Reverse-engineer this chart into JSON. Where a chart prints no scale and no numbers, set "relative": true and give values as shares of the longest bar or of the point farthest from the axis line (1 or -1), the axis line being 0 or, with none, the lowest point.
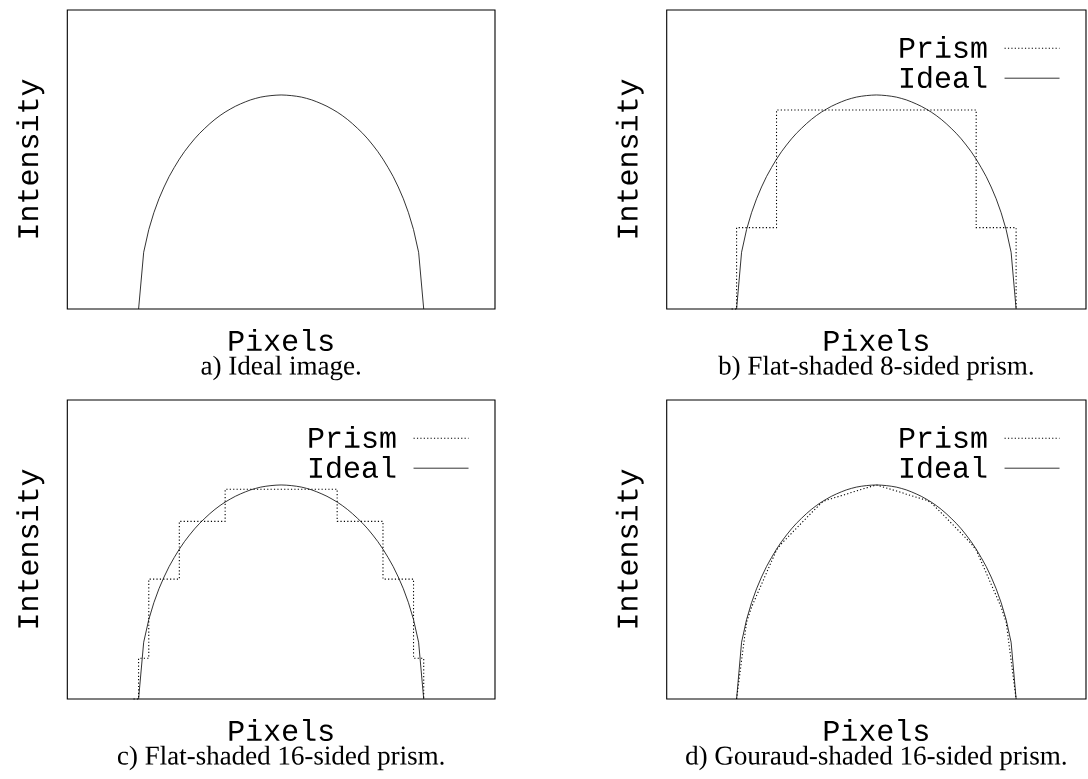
{
  "chart_data": [
    {
      "type": "line",
      "relative": true,
      "xlabel": "Pixels",
      "ylabel": "Intensity",
      "annotations": [
        "a) Ideal image."
      ],
      "categories": [
        null,
        null,
        null,
        null,
        null,
        null,
        null,
        null,
        null,
        null,
        null,
        null,
        null,
        null,
        null,
        null,
        null,
        null,
        null,
        null,
        null,
        null,
        null,
        null,
        null,
        null,
        null,
        null,
        null,
        null,
        null,
        null,
        null,
        null,
        null,
        null,
        null,
        null,
        null,
        null,
        null,
        null,
        null,
        null,
        null,
        null,
        null,
        null,
        null,
        null,
        null,
        null,
        null,
        null,
        null,
        null,
        null,
        null,
        null,
        null,
        null,
        null,
        null,
        null,
        null,
        null,
        null,
        null,
        null,
        null,
        null,
        null,
        null,
        null,
        null,
        null,
        null,
        null,
        null,
        null,
        null,
        null,
        null,
        null,
        null
      ],
      "series": [
        {
          "type": "line",
          "color": "#000000",
          "line_style": "solid",
          "values": [
            null,
            null,
            null,
            null,
            null,
            null,
            null,
            null,
            null,
            null,
            null,
            null,
            null,
            null,
            0,
            0.265,
            0.371,
            0.45,
            0.515,
            0.57,
            0.619,
            0.661,
            0.7,
            0.735,
            0.766,
            0.795,
            0.821,
            0.844,
            0.866,
            0.886,
            0.904,
            0.92,
            0.934,
            0.947,
            0.958,
            0.968,
            0.977,
            0.984,
            0.99,
            0.994,
            0.997,
            0.999,
            1,
            0.999,
            0.997,
            0.994,
            0.99,
            0.984,
            0.977,
            0.968,
            0.958,
            0.947,
            0.934,
            0.92,
            0.904,
            0.886,
            0.866,
            0.844,
            0.821,
            0.795,
            0.766,
            0.735,
            0.7,
            0.661,
            0.619,
            0.57,
            0.515,
            0.45,
            0.371,
            0.265,
            0,
            null,
            null,
            null,
            null,
            null,
            null,
            null,
            null,
            null,
            null,
            null,
            null,
            null,
            null
          ]
        }
      ]
    },
    {
      "type": "line",
      "relative": true,
      "xlabel": "Pixels",
      "ylabel": "Intensity",
      "annotations": [
        "b) Flat-shaded 8-sided prism."
      ],
      "legend": "top right",
      "categories": [
        null,
        null,
        null,
        null,
        null,
        null,
        null,
        null,
        null,
        null,
        null,
        null,
        null,
        null,
        null,
        null,
        null,
        null,
        null,
        null,
        null,
        null,
        null,
        null,
        null,
        null,
        null,
        null,
        null,
        null,
        null,
        null,
        null,
        null,
        null,
        null,
        null,
        null,
        null,
        null,
        null,
        null,
        null,
        null,
        null,
        null,
        null,
        null,
        null,
        null,
        null,
        null,
        null,
        null,
        null,
        null,
        null,
        null,
        null,
        null,
        null,
        null,
        null,
        null,
        null,
        null,
        null,
        null,
        null,
        null,
        null,
        null,
        null,
        null,
        null,
        null,
        null,
        null,
        null,
        null,
        null,
        null,
        null,
        null,
        null
      ],
      "series": [
        {
          "name": "Prism",
          "type": "step",
          "color": "#000000",
          "line_style": "dotted",
          "values": [
            null,
            null,
            null,
            null,
            null,
            null,
            null,
            null,
            null,
            null,
            null,
            null,
            null,
            0,
            0.38,
            0.38,
            0.38,
            0.38,
            0.38,
            0.38,
            0.38,
            0.38,
            0.93,
            0.93,
            0.93,
            0.93,
            0.93,
            0.93,
            0.93,
            0.93,
            0.93,
            0.93,
            0.93,
            0.93,
            0.93,
            0.93,
            0.93,
            0.93,
            0.93,
            0.93,
            0.93,
            0.93,
            0.93,
            0.93,
            0.93,
            0.93,
            0.93,
            0.93,
            0.93,
            0.93,
            0.93,
            0.93,
            0.93,
            0.93,
            0.93,
            0.93,
            0.93,
            0.93,
            0.93,
            0.93,
            0.93,
            0.93,
            0.38,
            0.38,
            0.38,
            0.38,
            0.38,
            0.38,
            0.38,
            0.38,
            0,
            null,
            null,
            null,
            null,
            null,
            null,
            null,
            null,
            null,
            null,
            null,
            null,
            null,
            null
          ]
        },
        {
          "name": "Ideal",
          "type": "line",
          "color": "#000000",
          "line_style": "solid",
          "values": [
            null,
            null,
            null,
            null,
            null,
            null,
            null,
            null,
            null,
            null,
            null,
            null,
            null,
            null,
            0,
            0.265,
            0.371,
            0.45,
            0.515,
            0.57,
            0.619,
            0.661,
            0.7,
            0.735,
            0.766,
            0.795,
            0.821,
            0.844,
            0.866,
            0.886,
            0.904,
            0.92,
            0.934,
            0.947,
            0.958,
            0.968,
            0.977,
            0.984,
            0.99,
            0.994,
            0.997,
            0.999,
            1,
            0.999,
            0.997,
            0.994,
            0.99,
            0.984,
            0.977,
            0.968,
            0.958,
            0.947,
            0.934,
            0.92,
            0.904,
            0.886,
            0.866,
            0.844,
            0.821,
            0.795,
            0.766,
            0.735,
            0.7,
            0.661,
            0.619,
            0.57,
            0.515,
            0.45,
            0.371,
            0.265,
            0,
            null,
            null,
            null,
            null,
            null,
            null,
            null,
            null,
            null,
            null,
            null,
            null,
            null,
            null
          ]
        }
      ]
    },
    {
      "type": "line",
      "relative": true,
      "xlabel": "Pixels",
      "ylabel": "Intensity",
      "annotations": [
        "c) Flat-shaded 16-sided prism."
      ],
      "legend": "top right",
      "categories": [
        null,
        null,
        null,
        null,
        null,
        null,
        null,
        null,
        null,
        null,
        null,
        null,
        null,
        null,
        null,
        null,
        null,
        null,
        null,
        null,
        null,
        null,
        null,
        null,
        null,
        null,
        null,
        null,
        null,
        null,
        null,
        null,
        null,
        null,
        null,
        null,
        null,
        null,
        null,
        null,
        null,
        null,
        null,
        null,
        null,
        null,
        null,
        null,
        null,
        null,
        null,
        null,
        null,
        null,
        null,
        null,
        null,
        null,
        null,
        null,
        null,
        null,
        null,
        null,
        null,
        null,
        null,
        null,
        null,
        null,
        null,
        null,
        null,
        null,
        null,
        null,
        null,
        null,
        null,
        null,
        null,
        null,
        null,
        null,
        null
      ],
      "series": [
        {
          "name": "Prism",
          "type": "step",
          "color": "#000000",
          "line_style": "dotted",
          "values": [
            null,
            null,
            null,
            null,
            null,
            null,
            null,
            null,
            null,
            null,
            null,
            null,
            null,
            0,
            0.19,
            0.19,
            0.56,
            0.56,
            0.56,
            0.56,
            0.56,
            0.56,
            0.83,
            0.83,
            0.83,
            0.83,
            0.83,
            0.83,
            0.83,
            0.83,
            0.83,
            0.98,
            0.98,
            0.98,
            0.98,
            0.98,
            0.98,
            0.98,
            0.98,
            0.98,
            0.98,
            0.98,
            0.98,
            0.98,
            0.98,
            0.98,
            0.98,
            0.98,
            0.98,
            0.98,
            0.98,
            0.98,
            0.98,
            0.83,
            0.83,
            0.83,
            0.83,
            0.83,
            0.83,
            0.83,
            0.83,
            0.83,
            0.56,
            0.56,
            0.56,
            0.56,
            0.56,
            0.56,
            0.19,
            0.19,
            0,
            null,
            null,
            null,
            null,
            null,
            null,
            null,
            null,
            null,
            null,
            null,
            null,
            null,
            null
          ]
        },
        {
          "name": "Ideal",
          "type": "line",
          "color": "#000000",
          "line_style": "solid",
          "values": [
            null,
            null,
            null,
            null,
            null,
            null,
            null,
            null,
            null,
            null,
            null,
            null,
            null,
            null,
            0,
            0.265,
            0.371,
            0.45,
            0.515,
            0.57,
            0.619,
            0.661,
            0.7,
            0.735,
            0.766,
            0.795,
            0.821,
            0.844,
            0.866,
            0.886,
            0.904,
            0.92,
            0.934,
            0.947,
            0.958,
            0.968,
            0.977,
            0.984,
            0.99,
            0.994,
            0.997,
            0.999,
            1,
            0.999,
            0.997,
            0.994,
            0.99,
            0.984,
            0.977,
            0.968,
            0.958,
            0.947,
            0.934,
            0.92,
            0.904,
            0.886,
            0.866,
            0.844,
            0.821,
            0.795,
            0.766,
            0.735,
            0.7,
            0.661,
            0.619,
            0.57,
            0.515,
            0.45,
            0.371,
            0.265,
            0,
            null,
            null,
            null,
            null,
            null,
            null,
            null,
            null,
            null,
            null,
            null,
            null,
            null,
            null
          ]
        }
      ]
    },
    {
      "type": "line",
      "relative": true,
      "xlabel": "Pixels",
      "ylabel": "Intensity",
      "annotations": [
        "d) Gouraud-shaded 16-sided prism."
      ],
      "legend": "top right",
      "categories": [
        null,
        null,
        null,
        null,
        null,
        null,
        null,
        null,
        null,
        null,
        null,
        null,
        null,
        null,
        null,
        null,
        null,
        null,
        null,
        null,
        null,
        null,
        null,
        null,
        null,
        null,
        null,
        null,
        null,
        null,
        null,
        null,
        null,
        null,
        null,
        null,
        null,
        null,
        null,
        null,
        null,
        null,
        null,
        null,
        null,
        null,
        null,
        null,
        null,
        null,
        null,
        null,
        null,
        null,
        null,
        null,
        null,
        null,
        null,
        null,
        null,
        null,
        null,
        null,
        null,
        null,
        null,
        null,
        null,
        null,
        null,
        null,
        null,
        null,
        null,
        null,
        null,
        null,
        null,
        null,
        null,
        null,
        null,
        null,
        null
      ],
      "series": [
        {
          "name": "Prism",
          "type": "line",
          "color": "#000000",
          "line_style": "dotted",
          "values": [
            null,
            null,
            null,
            null,
            null,
            null,
            null,
            null,
            null,
            null,
            null,
            null,
            null,
            null,
            0,
            0.18,
            0.36,
            0.429,
            0.483,
            0.536,
            0.59,
            0.643,
            0.696,
            0.726,
            0.75,
            0.774,
            0.798,
            0.822,
            0.846,
            0.87,
            0.893,
            0.917,
            0.929,
            0.936,
            0.943,
            0.95,
            0.957,
            0.965,
            0.972,
            0.979,
            0.986,
            0.993,
            1,
            0.993,
            0.986,
            0.979,
            0.972,
            0.965,
            0.957,
            0.95,
            0.943,
            0.936,
            0.929,
            0.917,
            0.893,
            0.87,
            0.846,
            0.822,
            0.798,
            0.774,
            0.75,
            0.726,
            0.696,
            0.643,
            0.59,
            0.536,
            0.483,
            0.429,
            0.36,
            0.18,
            0,
            null,
            null,
            null,
            null,
            null,
            null,
            null,
            null,
            null,
            null,
            null,
            null,
            null,
            null
          ]
        },
        {
          "name": "Ideal",
          "type": "line",
          "color": "#000000",
          "line_style": "solid",
          "values": [
            null,
            null,
            null,
            null,
            null,
            null,
            null,
            null,
            null,
            null,
            null,
            null,
            null,
            null,
            0,
            0.265,
            0.371,
            0.45,
            0.515,
            0.57,
            0.619,
            0.661,
            0.7,
            0.735,
            0.766,
            0.795,
            0.821,
            0.844,
            0.866,
            0.886,
            0.904,
            0.92,
            0.934,
            0.947,
            0.958,
            0.968,
            0.977,
            0.984,
            0.99,
            0.994,
            0.997,
            0.999,
            1,
            0.999,
            0.997,
            0.994,
            0.99,
            0.984,
            0.977,
            0.968,
            0.958,
            0.947,
            0.934,
            0.92,
            0.904,
            0.886,
            0.866,
            0.844,
            0.821,
            0.795,
            0.766,
            0.735,
            0.7,
            0.661,
            0.619,
            0.57,
            0.515,
            0.45,
            0.371,
            0.265,
            0,
            null,
            null,
            null,
            null,
            null,
            null,
            null,
            null,
            null,
            null,
            null,
            null,
            null,
            null
          ]
        }
      ]
    }
  ]
}
